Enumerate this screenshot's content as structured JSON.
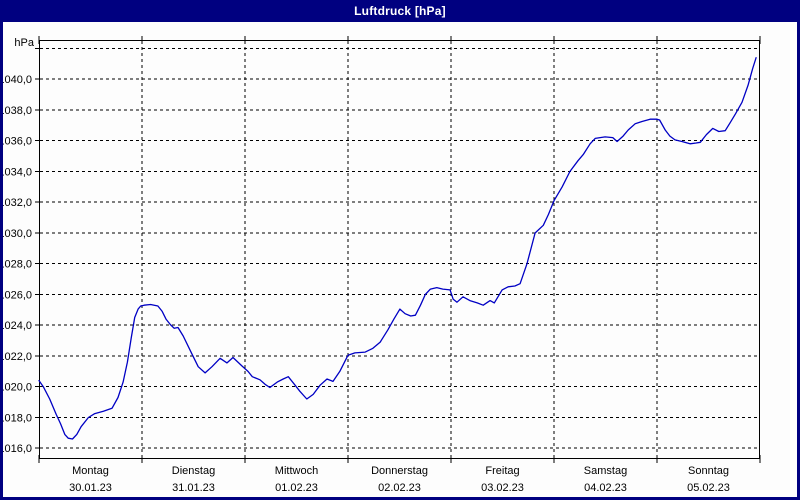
{
  "window": {
    "title": "Luftdruck [hPa]"
  },
  "colors": {
    "frame": "#000080",
    "titlebar_bg": "#000080",
    "titlebar_text": "#ffffff",
    "plot_bg": "#fdfdfd",
    "grid": "#000000",
    "line": "#0000c4"
  },
  "chart_data": {
    "type": "line",
    "title": "Luftdruck [hPa]",
    "unit_label": "hPa",
    "ylabel": "hPa",
    "grid": "dashed",
    "legend": "none",
    "ylim": [
      1015.3,
      1042.55
    ],
    "y_tick_values": [
      1016,
      1018,
      1020,
      1022,
      1024,
      1026,
      1028,
      1030,
      1032,
      1034,
      1036,
      1038,
      1040
    ],
    "y_tick_labels": [
      "1016,0",
      "1018,0",
      "1020,0",
      "1022,0",
      "1024,0",
      "1026,0",
      "1028,0",
      "1030,0",
      "1032,0",
      "1034,0",
      "1036,0",
      "1038,0",
      "1040,0"
    ],
    "extra_gridlines": [
      1042
    ],
    "x_hours_total": 168,
    "x_days": [
      {
        "name": "Montag",
        "date": "30.01.23"
      },
      {
        "name": "Dienstag",
        "date": "31.01.23"
      },
      {
        "name": "Mittwoch",
        "date": "01.02.23"
      },
      {
        "name": "Donnerstag",
        "date": "02.02.23"
      },
      {
        "name": "Freitag",
        "date": "03.02.23"
      },
      {
        "name": "Samstag",
        "date": "04.02.23"
      },
      {
        "name": "Sonntag",
        "date": "05.02.23"
      }
    ],
    "series": [
      {
        "name": "Luftdruck",
        "color": "#0000c4",
        "points": [
          [
            0,
            1020.4
          ],
          [
            1,
            1020.0
          ],
          [
            2.5,
            1019.2
          ],
          [
            4,
            1018.2
          ],
          [
            5,
            1017.6
          ],
          [
            6,
            1016.9
          ],
          [
            6.8,
            1016.65
          ],
          [
            7.8,
            1016.6
          ],
          [
            8.8,
            1016.9
          ],
          [
            9.8,
            1017.4
          ],
          [
            11.5,
            1018.0
          ],
          [
            13,
            1018.25
          ],
          [
            15,
            1018.4
          ],
          [
            17,
            1018.6
          ],
          [
            18.4,
            1019.3
          ],
          [
            19.6,
            1020.3
          ],
          [
            20.6,
            1021.6
          ],
          [
            21.5,
            1023.2
          ],
          [
            22.3,
            1024.5
          ],
          [
            23.1,
            1025.05
          ],
          [
            23.7,
            1025.25
          ],
          [
            24.5,
            1025.3
          ],
          [
            26,
            1025.35
          ],
          [
            27.7,
            1025.25
          ],
          [
            28.7,
            1024.9
          ],
          [
            29.6,
            1024.4
          ],
          [
            30.6,
            1024.05
          ],
          [
            31.5,
            1023.8
          ],
          [
            32.4,
            1023.85
          ],
          [
            33.6,
            1023.3
          ],
          [
            35.6,
            1022.15
          ],
          [
            37.1,
            1021.3
          ],
          [
            38.7,
            1020.9
          ],
          [
            40.3,
            1021.3
          ],
          [
            42.2,
            1021.85
          ],
          [
            43.8,
            1021.55
          ],
          [
            45.2,
            1021.9
          ],
          [
            47.3,
            1021.35
          ],
          [
            48.7,
            1021.0
          ],
          [
            49.7,
            1020.65
          ],
          [
            51.5,
            1020.45
          ],
          [
            52.7,
            1020.15
          ],
          [
            53.8,
            1019.95
          ],
          [
            55.5,
            1020.3
          ],
          [
            56.9,
            1020.5
          ],
          [
            58.1,
            1020.65
          ],
          [
            59.4,
            1020.2
          ],
          [
            60.8,
            1019.7
          ],
          [
            62.4,
            1019.2
          ],
          [
            63.9,
            1019.5
          ],
          [
            65.5,
            1020.1
          ],
          [
            67.1,
            1020.5
          ],
          [
            68.5,
            1020.35
          ],
          [
            70.1,
            1021.0
          ],
          [
            72,
            1022.05
          ],
          [
            73.6,
            1022.2
          ],
          [
            76,
            1022.25
          ],
          [
            77.8,
            1022.5
          ],
          [
            79.5,
            1022.9
          ],
          [
            81.3,
            1023.7
          ],
          [
            82.7,
            1024.4
          ],
          [
            84.1,
            1025.05
          ],
          [
            85.3,
            1024.75
          ],
          [
            86.6,
            1024.6
          ],
          [
            87.7,
            1024.65
          ],
          [
            88.9,
            1025.3
          ],
          [
            90,
            1026.0
          ],
          [
            91.2,
            1026.35
          ],
          [
            92.7,
            1026.45
          ],
          [
            94.1,
            1026.35
          ],
          [
            95.8,
            1026.3
          ],
          [
            96.5,
            1025.7
          ],
          [
            97.4,
            1025.5
          ],
          [
            98.8,
            1025.85
          ],
          [
            100.4,
            1025.6
          ],
          [
            102.1,
            1025.45
          ],
          [
            103.5,
            1025.3
          ],
          [
            105.1,
            1025.6
          ],
          [
            106.1,
            1025.45
          ],
          [
            107.9,
            1026.3
          ],
          [
            109.3,
            1026.5
          ],
          [
            110.9,
            1026.55
          ],
          [
            112.1,
            1026.7
          ],
          [
            113.7,
            1028.0
          ],
          [
            115.6,
            1030.0
          ],
          [
            117.5,
            1030.5
          ],
          [
            118.7,
            1031.2
          ],
          [
            120,
            1032.1
          ],
          [
            121.9,
            1033.0
          ],
          [
            123.7,
            1034.0
          ],
          [
            125.6,
            1034.7
          ],
          [
            126.8,
            1035.1
          ],
          [
            128.4,
            1035.8
          ],
          [
            129.6,
            1036.15
          ],
          [
            131.9,
            1036.25
          ],
          [
            133.7,
            1036.2
          ],
          [
            134.7,
            1035.95
          ],
          [
            136.1,
            1036.3
          ],
          [
            137.3,
            1036.7
          ],
          [
            138.9,
            1037.1
          ],
          [
            140.5,
            1037.25
          ],
          [
            142.4,
            1037.4
          ],
          [
            144,
            1037.4
          ],
          [
            144.6,
            1037.35
          ],
          [
            145.9,
            1036.7
          ],
          [
            147,
            1036.3
          ],
          [
            148.2,
            1036.05
          ],
          [
            149.8,
            1035.95
          ],
          [
            151.7,
            1035.8
          ],
          [
            153.1,
            1035.85
          ],
          [
            154.1,
            1035.9
          ],
          [
            155.5,
            1036.4
          ],
          [
            157,
            1036.8
          ],
          [
            158.4,
            1036.6
          ],
          [
            159.9,
            1036.65
          ],
          [
            161.1,
            1037.2
          ],
          [
            162.3,
            1037.75
          ],
          [
            163.8,
            1038.5
          ],
          [
            165.2,
            1039.6
          ],
          [
            166.3,
            1040.7
          ],
          [
            167.1,
            1041.4
          ]
        ]
      }
    ]
  }
}
